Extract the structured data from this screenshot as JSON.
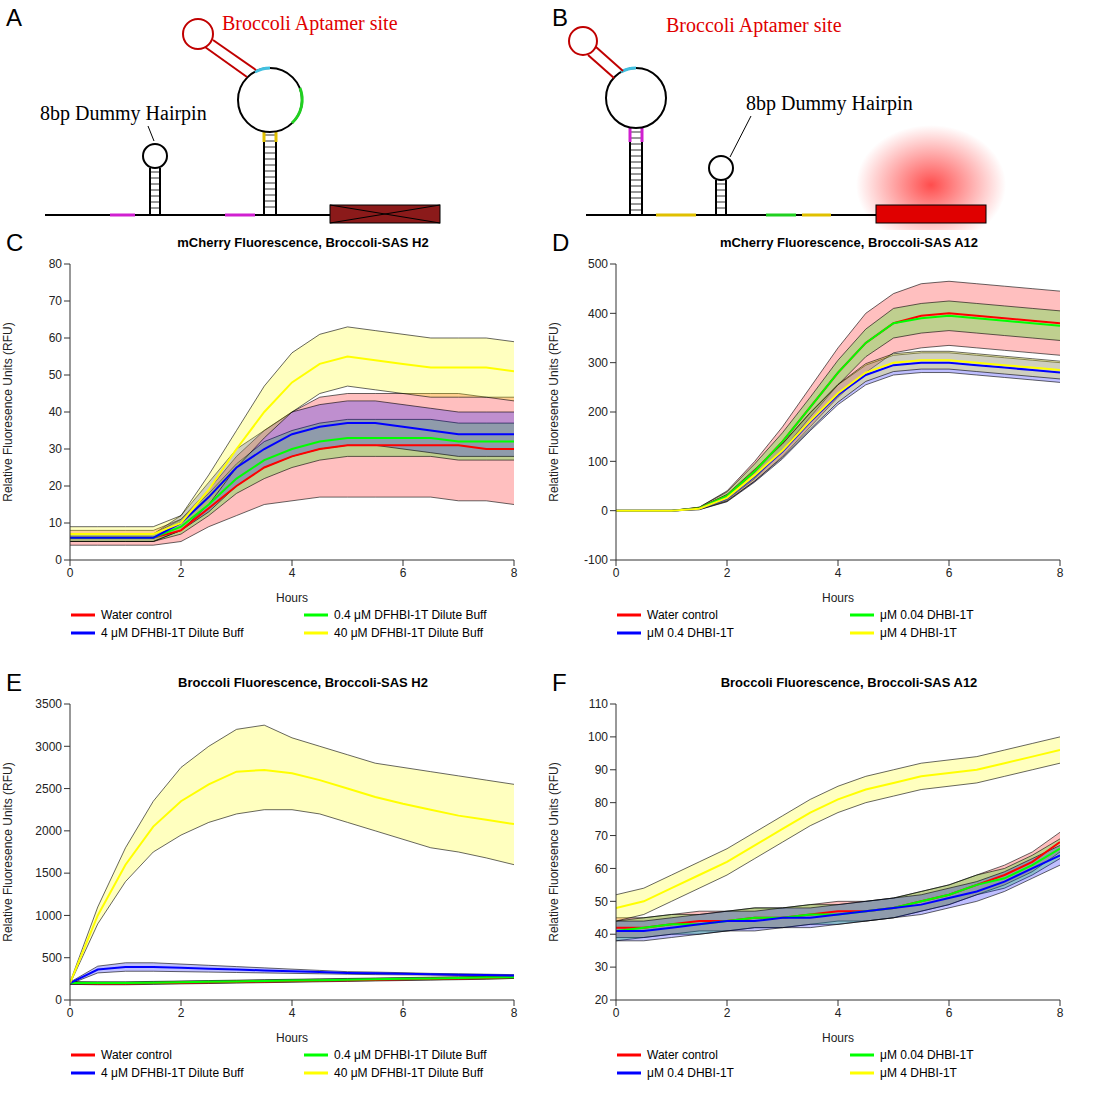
{
  "diagrams": [
    {
      "panel": "A",
      "hairpin_label": "8bp Dummy Hairpin",
      "aptamer_label": "Broccoli Aptamer site"
    },
    {
      "panel": "B",
      "hairpin_label": "8bp Dummy Hairpin",
      "aptamer_label": "Broccoli Aptamer site"
    }
  ],
  "chart_data": [
    {
      "panel": "C",
      "type": "line",
      "title": "mCherry Fluorescence, Broccoli-SAS H2",
      "x_label": "Hours",
      "y_label": "Relative Fluoresence Units (RFU)",
      "x": [
        0,
        0.5,
        1,
        1.5,
        2,
        2.5,
        3,
        3.5,
        4,
        4.5,
        5,
        5.5,
        6,
        6.5,
        7,
        7.5,
        8
      ],
      "xlim": [
        0,
        8
      ],
      "xticks": [
        0,
        2,
        4,
        6,
        8
      ],
      "ylim": [
        0,
        80
      ],
      "yticks": [
        0,
        10,
        20,
        30,
        40,
        50,
        60,
        70,
        80
      ],
      "grid": false,
      "legend": "bottom",
      "series": [
        {
          "name": "Water control",
          "color": "#ff0000",
          "values": [
            6,
            6,
            6,
            6,
            8,
            14,
            20,
            25,
            28,
            30,
            31,
            31,
            31,
            31,
            31,
            30,
            30
          ],
          "lower": [
            4,
            4,
            4,
            4,
            5,
            9,
            12,
            15,
            16,
            17,
            17,
            17,
            17,
            17,
            16,
            16,
            15
          ],
          "upper": [
            8,
            8,
            8,
            8,
            11,
            19,
            28,
            35,
            40,
            44,
            45,
            45,
            45,
            45,
            45,
            44,
            44
          ]
        },
        {
          "name": "0.4 μM DFHBI-1T Dilute Buff",
          "color": "#00ff00",
          "values": [
            6,
            6,
            6,
            6,
            9,
            15,
            22,
            27,
            30,
            32,
            33,
            33,
            33,
            33,
            32,
            32,
            32
          ],
          "lower": [
            5,
            5,
            5,
            5,
            7,
            12,
            18,
            22,
            25,
            27,
            28,
            28,
            28,
            28,
            27,
            27,
            27
          ],
          "upper": [
            7,
            7,
            7,
            7,
            11,
            18,
            26,
            32,
            35,
            37,
            38,
            38,
            38,
            38,
            37,
            37,
            37
          ]
        },
        {
          "name": "4 μM DFHBI-1T Dilute Buff",
          "color": "#0000ff",
          "values": [
            6,
            6,
            6,
            6,
            10,
            17,
            25,
            30,
            34,
            36,
            37,
            37,
            36,
            35,
            34,
            34,
            34
          ],
          "lower": [
            5,
            5,
            5,
            5,
            8,
            13,
            20,
            25,
            28,
            30,
            31,
            31,
            30,
            29,
            28,
            28,
            28
          ],
          "upper": [
            7,
            7,
            7,
            7,
            12,
            21,
            30,
            35,
            40,
            42,
            43,
            43,
            42,
            41,
            40,
            40,
            40
          ]
        },
        {
          "name": "40 μM DFHBI-1T Dilute Buff",
          "color": "#ffff00",
          "values": [
            7,
            7,
            7,
            7,
            10,
            19,
            30,
            40,
            48,
            53,
            55,
            54,
            53,
            52,
            52,
            52,
            51
          ],
          "lower": [
            5,
            5,
            5,
            5,
            8,
            15,
            25,
            33,
            40,
            45,
            47,
            46,
            45,
            44,
            44,
            44,
            43
          ],
          "upper": [
            9,
            9,
            9,
            9,
            12,
            23,
            35,
            47,
            56,
            61,
            63,
            62,
            61,
            60,
            60,
            60,
            59
          ]
        }
      ]
    },
    {
      "panel": "D",
      "type": "line",
      "title": "mCherry Fluorescence, Broccoli-SAS A12",
      "x_label": "Hours",
      "y_label": "Relative Fluoresence Units (RFU)",
      "x": [
        0,
        0.5,
        1,
        1.5,
        2,
        2.5,
        3,
        3.5,
        4,
        4.5,
        5,
        5.5,
        6,
        6.5,
        7,
        7.5,
        8
      ],
      "xlim": [
        0,
        8
      ],
      "xticks": [
        0,
        2,
        4,
        6,
        8
      ],
      "ylim": [
        -100,
        500
      ],
      "yticks": [
        -100,
        0,
        100,
        200,
        300,
        400,
        500
      ],
      "grid": false,
      "legend": "bottom",
      "series": [
        {
          "name": "Water control",
          "color": "#ff0000",
          "values": [
            0,
            0,
            0,
            5,
            30,
            80,
            140,
            210,
            280,
            340,
            380,
            395,
            400,
            395,
            390,
            385,
            380
          ],
          "lower": [
            0,
            0,
            0,
            3,
            20,
            60,
            110,
            170,
            230,
            280,
            320,
            330,
            335,
            330,
            325,
            320,
            315
          ],
          "upper": [
            0,
            0,
            0,
            7,
            40,
            100,
            170,
            250,
            330,
            400,
            440,
            460,
            465,
            460,
            455,
            450,
            445
          ]
        },
        {
          "name": "μM 0.04 DHBI-1T",
          "color": "#00ff00",
          "values": [
            0,
            0,
            0,
            5,
            30,
            80,
            140,
            210,
            280,
            340,
            380,
            390,
            395,
            390,
            385,
            380,
            375
          ],
          "lower": [
            0,
            0,
            0,
            3,
            22,
            65,
            122,
            190,
            255,
            312,
            350,
            360,
            365,
            360,
            355,
            350,
            345
          ],
          "upper": [
            0,
            0,
            0,
            7,
            38,
            95,
            158,
            230,
            305,
            368,
            410,
            420,
            425,
            420,
            415,
            410,
            405
          ]
        },
        {
          "name": "μM 0.4 DHBI-1T",
          "color": "#0000ff",
          "values": [
            0,
            0,
            0,
            4,
            25,
            70,
            120,
            180,
            235,
            275,
            295,
            300,
            300,
            295,
            290,
            285,
            280
          ],
          "lower": [
            0,
            0,
            0,
            2,
            18,
            58,
            105,
            162,
            215,
            255,
            275,
            280,
            280,
            275,
            270,
            265,
            260
          ],
          "upper": [
            0,
            0,
            0,
            6,
            32,
            82,
            135,
            198,
            255,
            295,
            315,
            320,
            320,
            315,
            310,
            305,
            300
          ]
        },
        {
          "name": "μM 4 DHBI-1T",
          "color": "#ffff00",
          "values": [
            0,
            0,
            0,
            4,
            26,
            72,
            122,
            182,
            238,
            280,
            300,
            305,
            305,
            300,
            295,
            290,
            285
          ],
          "lower": [
            0,
            0,
            0,
            2,
            19,
            60,
            108,
            165,
            220,
            262,
            282,
            287,
            287,
            282,
            277,
            272,
            267
          ],
          "upper": [
            0,
            0,
            0,
            6,
            33,
            84,
            136,
            199,
            256,
            298,
            318,
            323,
            323,
            318,
            313,
            308,
            303
          ]
        }
      ]
    },
    {
      "panel": "E",
      "type": "line",
      "title": "Broccoli Fluorescence, Broccoli-SAS H2",
      "x_label": "Hours",
      "y_label": "Relative Fluoresence Units (RFU)",
      "x": [
        0,
        0.5,
        1,
        1.5,
        2,
        2.5,
        3,
        3.5,
        4,
        4.5,
        5,
        5.5,
        6,
        6.5,
        7,
        7.5,
        8
      ],
      "xlim": [
        0,
        8
      ],
      "xticks": [
        0,
        2,
        4,
        6,
        8
      ],
      "ylim": [
        0,
        3500
      ],
      "yticks": [
        0,
        500,
        1000,
        1500,
        2000,
        2500,
        3000,
        3500
      ],
      "grid": false,
      "legend": "bottom",
      "series": [
        {
          "name": "Water control",
          "color": "#ff0000",
          "values": [
            200,
            195,
            195,
            200,
            205,
            210,
            215,
            220,
            225,
            230,
            235,
            240,
            245,
            250,
            255,
            260,
            270
          ],
          "lower": [
            185,
            180,
            180,
            185,
            190,
            195,
            200,
            205,
            210,
            215,
            220,
            225,
            230,
            235,
            240,
            245,
            255
          ],
          "upper": [
            215,
            210,
            210,
            215,
            220,
            225,
            230,
            235,
            240,
            245,
            250,
            255,
            260,
            265,
            270,
            275,
            285
          ]
        },
        {
          "name": "0.4 μM DFHBI-1T Dilute Buff",
          "color": "#00ff00",
          "values": [
            200,
            200,
            200,
            205,
            210,
            215,
            220,
            225,
            230,
            235,
            240,
            245,
            250,
            255,
            260,
            265,
            270
          ],
          "lower": [
            185,
            185,
            185,
            190,
            195,
            200,
            205,
            210,
            215,
            220,
            225,
            230,
            235,
            240,
            245,
            250,
            255
          ],
          "upper": [
            215,
            215,
            215,
            220,
            225,
            230,
            235,
            240,
            245,
            250,
            255,
            260,
            265,
            270,
            275,
            280,
            285
          ]
        },
        {
          "name": "4 μM DFHBI-1T Dilute Buff",
          "color": "#0000ff",
          "values": [
            200,
            360,
            390,
            390,
            380,
            370,
            360,
            350,
            340,
            330,
            320,
            315,
            310,
            305,
            300,
            295,
            290
          ],
          "lower": [
            190,
            320,
            340,
            340,
            335,
            330,
            325,
            320,
            315,
            310,
            305,
            300,
            297,
            295,
            290,
            285,
            280
          ],
          "upper": [
            210,
            400,
            440,
            440,
            425,
            410,
            395,
            380,
            365,
            350,
            335,
            330,
            323,
            315,
            310,
            305,
            300
          ]
        },
        {
          "name": "40 μM DFHBI-1T Dilute Buff",
          "color": "#ffff00",
          "values": [
            200,
            1000,
            1600,
            2050,
            2350,
            2550,
            2700,
            2720,
            2680,
            2600,
            2500,
            2400,
            2320,
            2250,
            2180,
            2130,
            2080
          ],
          "lower": [
            190,
            900,
            1400,
            1750,
            1950,
            2100,
            2200,
            2250,
            2250,
            2200,
            2100,
            2000,
            1900,
            1800,
            1750,
            1680,
            1600
          ],
          "upper": [
            210,
            1100,
            1800,
            2350,
            2750,
            3000,
            3200,
            3250,
            3100,
            3000,
            2900,
            2800,
            2750,
            2700,
            2650,
            2600,
            2550
          ]
        }
      ]
    },
    {
      "panel": "F",
      "type": "line",
      "title": "Broccoli Fluorescence, Broccoli-SAS A12",
      "x_label": "Hours",
      "y_label": "Relative Fluoresence Units (RFU)",
      "x": [
        0,
        0.5,
        1,
        1.5,
        2,
        2.5,
        3,
        3.5,
        4,
        4.5,
        5,
        5.5,
        6,
        6.5,
        7,
        7.5,
        8
      ],
      "xlim": [
        0,
        8
      ],
      "xticks": [
        0,
        2,
        4,
        6,
        8
      ],
      "ylim": [
        20,
        110
      ],
      "yticks": [
        20,
        30,
        40,
        50,
        60,
        70,
        80,
        90,
        100,
        110
      ],
      "grid": false,
      "legend": "bottom",
      "series": [
        {
          "name": "Water control",
          "color": "#ff0000",
          "values": [
            42,
            42,
            43,
            44,
            44,
            45,
            45,
            46,
            47,
            47,
            48,
            50,
            52,
            55,
            58,
            62,
            68
          ],
          "lower": [
            39,
            39,
            40,
            41,
            41,
            42,
            42,
            43,
            44,
            44,
            45,
            47,
            49,
            52,
            55,
            59,
            65
          ],
          "upper": [
            45,
            45,
            46,
            47,
            47,
            48,
            48,
            49,
            50,
            50,
            51,
            53,
            55,
            58,
            61,
            65,
            71
          ]
        },
        {
          "name": "μM 0.04 DHBI-1T",
          "color": "#00ff00",
          "values": [
            41,
            42,
            43,
            43,
            44,
            45,
            45,
            46,
            46,
            47,
            48,
            50,
            52,
            55,
            57,
            61,
            66
          ],
          "lower": [
            38,
            39,
            40,
            40,
            41,
            42,
            42,
            43,
            43,
            44,
            45,
            47,
            49,
            52,
            54,
            58,
            63
          ],
          "upper": [
            44,
            45,
            46,
            46,
            47,
            48,
            48,
            49,
            49,
            50,
            51,
            53,
            55,
            58,
            60,
            64,
            69
          ]
        },
        {
          "name": "μM 0.4 DHBI-1T",
          "color": "#0000ff",
          "values": [
            41,
            41,
            42,
            43,
            44,
            44,
            45,
            45,
            46,
            47,
            48,
            49,
            51,
            53,
            56,
            60,
            64
          ],
          "lower": [
            38,
            38,
            39,
            40,
            41,
            41,
            42,
            42,
            43,
            44,
            45,
            46,
            48,
            50,
            53,
            57,
            61
          ],
          "upper": [
            44,
            44,
            45,
            46,
            47,
            47,
            48,
            48,
            49,
            50,
            51,
            52,
            54,
            56,
            59,
            63,
            67
          ]
        },
        {
          "name": "μM 4 DHBI-1T",
          "color": "#ffff00",
          "values": [
            48,
            50,
            54,
            58,
            62,
            67,
            72,
            77,
            81,
            84,
            86,
            88,
            89,
            90,
            92,
            94,
            96
          ],
          "lower": [
            44,
            46,
            50,
            54,
            58,
            63,
            68,
            73,
            77,
            80,
            82,
            84,
            85,
            86,
            88,
            90,
            92
          ],
          "upper": [
            52,
            54,
            58,
            62,
            66,
            71,
            76,
            81,
            85,
            88,
            90,
            92,
            93,
            94,
            96,
            98,
            100
          ]
        }
      ]
    }
  ]
}
